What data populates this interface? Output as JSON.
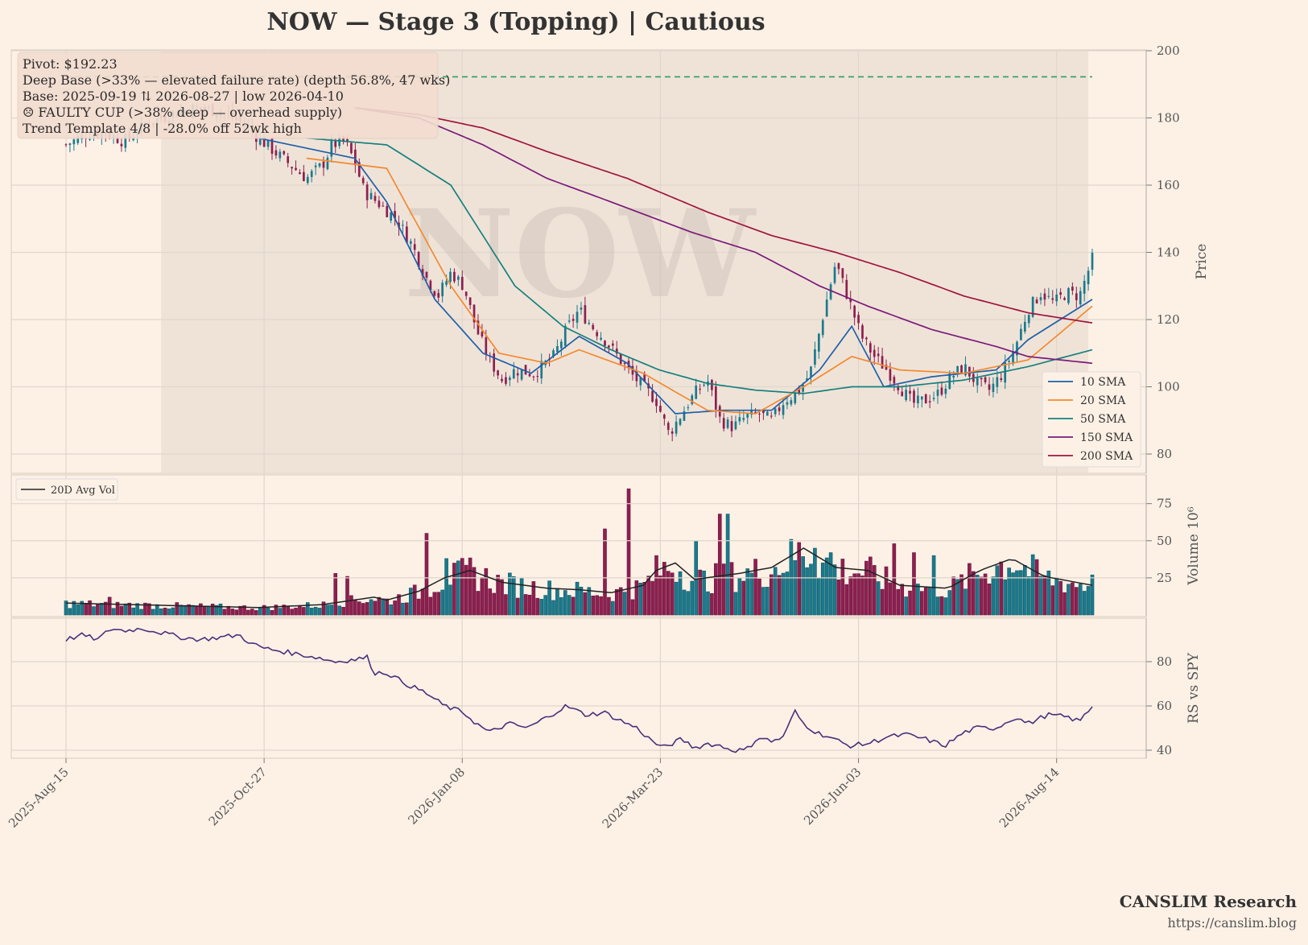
{
  "title": "NOW  —  Stage 3 (Topping)  |  Cautious",
  "watermark": "NOW",
  "info_box": {
    "lines": [
      "Pivot: $192.23",
      "Deep Base (>33% — elevated failure rate)  (depth 56.8%, 47 wks)",
      "Base: 2025-09-19 ⇅ 2026-08-27  |  low 2026-04-10",
      "☹ FAULTY CUP (>38% deep — overhead supply)",
      "Trend Template 4/8  |  -28.0% off 52wk high"
    ]
  },
  "footer": {
    "brand": "CANSLIM Research",
    "url": "https://canslim.blog"
  },
  "colors": {
    "up": "#1b7a8c",
    "down": "#8e1f4f",
    "pivot": "#2e9e5e",
    "sma10": "#1f5fa8",
    "sma20": "#f28a30",
    "sma50": "#17807e",
    "sma150": "#7a1a7a",
    "sma200": "#a0143c",
    "avgvol": "#222222",
    "rs": "#4a2f7a",
    "grid": "#e0d6cc",
    "base_shade": "#e9ddd3"
  },
  "chart_data": {
    "type": "candlestick-with-volume-and-rs",
    "x_ticks": [
      "2025-Aug-15",
      "2025-Oct-27",
      "2026-Jan-08",
      "2026-Mar-23",
      "2026-Jun-03",
      "2026-Aug-14"
    ],
    "x_tick_index": [
      0,
      50,
      100,
      150,
      200,
      250
    ],
    "total_bars": 260,
    "base_range_index": [
      24,
      258
    ],
    "price_panel": {
      "ylabel": "Price",
      "ylim": [
        80,
        200
      ],
      "yticks": [
        80,
        100,
        120,
        140,
        160,
        180,
        200
      ],
      "pivot": 192.23,
      "close_path": [
        [
          0,
          172
        ],
        [
          6,
          175
        ],
        [
          12,
          176
        ],
        [
          18,
          173
        ],
        [
          25,
          178
        ],
        [
          32,
          181
        ],
        [
          40,
          183
        ],
        [
          48,
          182
        ],
        [
          56,
          178
        ],
        [
          60,
          174
        ],
        [
          65,
          170
        ],
        [
          70,
          166
        ],
        [
          75,
          162
        ],
        [
          80,
          166
        ],
        [
          83,
          172
        ],
        [
          87,
          173
        ],
        [
          90,
          167
        ],
        [
          93,
          158
        ],
        [
          97,
          155
        ],
        [
          103,
          150
        ],
        [
          108,
          142
        ],
        [
          112,
          133
        ],
        [
          116,
          127
        ],
        [
          120,
          134
        ],
        [
          124,
          130
        ],
        [
          128,
          117
        ],
        [
          132,
          108
        ],
        [
          136,
          102
        ],
        [
          140,
          105
        ],
        [
          146,
          104
        ],
        [
          152,
          109
        ],
        [
          156,
          117
        ],
        [
          160,
          123
        ],
        [
          164,
          118
        ],
        [
          168,
          114
        ],
        [
          172,
          109
        ],
        [
          176,
          104
        ],
        [
          180,
          100
        ],
        [
          184,
          96
        ],
        [
          188,
          86
        ],
        [
          192,
          92
        ],
        [
          196,
          98
        ],
        [
          200,
          102
        ],
        [
          204,
          90
        ],
        [
          208,
          88
        ],
        [
          212,
          91
        ],
        [
          216,
          92
        ],
        [
          220,
          90
        ],
        [
          224,
          96
        ],
        [
          228,
          98
        ],
        [
          232,
          104
        ],
        [
          236,
          121
        ],
        [
          240,
          137
        ],
        [
          244,
          126
        ],
        [
          248,
          115
        ],
        [
          252,
          109
        ],
        [
          256,
          105
        ],
        [
          260,
          100
        ],
        [
          264,
          95
        ],
        [
          268,
          96
        ],
        [
          272,
          98
        ],
        [
          276,
          103
        ],
        [
          280,
          106
        ],
        [
          284,
          101
        ],
        [
          288,
          99
        ],
        [
          292,
          104
        ],
        [
          296,
          112
        ],
        [
          300,
          123
        ],
        [
          304,
          128
        ],
        [
          308,
          125
        ],
        [
          312,
          128
        ],
        [
          316,
          127
        ],
        [
          320,
          138
        ]
      ]
    },
    "sma_series": [
      {
        "name": "10 SMA",
        "lag": 10
      },
      {
        "name": "20 SMA",
        "lag": 20
      },
      {
        "name": "50 SMA",
        "lag": 50
      },
      {
        "name": "150 SMA",
        "lag": 150
      },
      {
        "name": "200 SMA",
        "lag": 200
      }
    ],
    "sma_anchors": {
      "10 SMA": [
        [
          60,
          174
        ],
        [
          90,
          168
        ],
        [
          100,
          155
        ],
        [
          115,
          126
        ],
        [
          130,
          110
        ],
        [
          145,
          104
        ],
        [
          160,
          115
        ],
        [
          175,
          107
        ],
        [
          190,
          92
        ],
        [
          205,
          93
        ],
        [
          220,
          93
        ],
        [
          235,
          105
        ],
        [
          245,
          118
        ],
        [
          255,
          100
        ],
        [
          270,
          103
        ],
        [
          290,
          105
        ],
        [
          300,
          114
        ],
        [
          320,
          126
        ]
      ],
      "20 SMA": [
        [
          75,
          168
        ],
        [
          100,
          165
        ],
        [
          120,
          130
        ],
        [
          135,
          110
        ],
        [
          150,
          107
        ],
        [
          160,
          111
        ],
        [
          180,
          104
        ],
        [
          200,
          93
        ],
        [
          215,
          92
        ],
        [
          230,
          100
        ],
        [
          245,
          109
        ],
        [
          260,
          105
        ],
        [
          280,
          104
        ],
        [
          300,
          108
        ],
        [
          320,
          124
        ]
      ],
      "50 SMA": [
        [
          75,
          174
        ],
        [
          100,
          172
        ],
        [
          120,
          160
        ],
        [
          140,
          130
        ],
        [
          155,
          118
        ],
        [
          170,
          111
        ],
        [
          185,
          105
        ],
        [
          200,
          101
        ],
        [
          215,
          99
        ],
        [
          230,
          98
        ],
        [
          245,
          100
        ],
        [
          260,
          100
        ],
        [
          280,
          102
        ],
        [
          300,
          106
        ],
        [
          320,
          111
        ]
      ],
      "150 SMA": [
        [
          90,
          183
        ],
        [
          110,
          180
        ],
        [
          130,
          172
        ],
        [
          150,
          162
        ],
        [
          170,
          155
        ],
        [
          195,
          146
        ],
        [
          215,
          140
        ],
        [
          235,
          130
        ],
        [
          250,
          124
        ],
        [
          270,
          117
        ],
        [
          290,
          112
        ],
        [
          300,
          109
        ],
        [
          320,
          107
        ]
      ],
      "200 SMA": [
        [
          90,
          183
        ],
        [
          110,
          181
        ],
        [
          130,
          177
        ],
        [
          150,
          170
        ],
        [
          175,
          162
        ],
        [
          200,
          152
        ],
        [
          220,
          145
        ],
        [
          240,
          140
        ],
        [
          260,
          134
        ],
        [
          280,
          127
        ],
        [
          300,
          122
        ],
        [
          320,
          119
        ]
      ]
    },
    "volume_panel": {
      "ylabel": "Volume  10⁶",
      "ylim": [
        0,
        90
      ],
      "yticks": [
        25,
        50,
        75
      ],
      "legend": "20D Avg Vol",
      "level_path": [
        [
          0,
          8
        ],
        [
          20,
          7
        ],
        [
          40,
          6
        ],
        [
          60,
          5
        ],
        [
          80,
          7
        ],
        [
          96,
          12
        ],
        [
          100,
          10
        ],
        [
          110,
          16
        ],
        [
          118,
          25
        ],
        [
          126,
          30
        ],
        [
          136,
          22
        ],
        [
          150,
          18
        ],
        [
          160,
          17
        ],
        [
          170,
          15
        ],
        [
          180,
          20
        ],
        [
          184,
          30
        ],
        [
          190,
          35
        ],
        [
          196,
          24
        ],
        [
          210,
          28
        ],
        [
          220,
          32
        ],
        [
          230,
          45
        ],
        [
          240,
          32
        ],
        [
          250,
          30
        ],
        [
          260,
          20
        ],
        [
          275,
          18
        ],
        [
          285,
          30
        ],
        [
          295,
          38
        ],
        [
          305,
          26
        ],
        [
          320,
          20
        ]
      ],
      "spikes": [
        [
          14,
          12
        ],
        [
          84,
          28
        ],
        [
          88,
          26
        ],
        [
          112,
          55
        ],
        [
          118,
          38
        ],
        [
          168,
          58
        ],
        [
          176,
          85
        ],
        [
          184,
          40
        ],
        [
          196,
          50
        ],
        [
          204,
          68
        ],
        [
          206,
          68
        ],
        [
          234,
          45
        ],
        [
          238,
          42
        ],
        [
          258,
          48
        ],
        [
          264,
          42
        ],
        [
          270,
          40
        ],
        [
          320,
          27
        ]
      ]
    },
    "rs_panel": {
      "ylabel": "RS vs SPY",
      "ylim": [
        37,
        95
      ],
      "yticks": [
        40,
        60,
        80
      ],
      "path": [
        [
          0,
          90
        ],
        [
          5,
          92
        ],
        [
          10,
          90
        ],
        [
          14,
          95
        ],
        [
          18,
          94
        ],
        [
          24,
          95
        ],
        [
          30,
          93
        ],
        [
          36,
          91
        ],
        [
          42,
          90
        ],
        [
          48,
          91
        ],
        [
          54,
          92
        ],
        [
          58,
          88
        ],
        [
          62,
          86
        ],
        [
          70,
          84
        ],
        [
          78,
          82
        ],
        [
          84,
          80
        ],
        [
          90,
          81
        ],
        [
          94,
          82
        ],
        [
          96,
          75
        ],
        [
          100,
          75
        ],
        [
          106,
          70
        ],
        [
          112,
          66
        ],
        [
          118,
          60
        ],
        [
          124,
          57
        ],
        [
          128,
          52
        ],
        [
          132,
          48
        ],
        [
          138,
          52
        ],
        [
          144,
          50
        ],
        [
          150,
          55
        ],
        [
          156,
          60
        ],
        [
          162,
          56
        ],
        [
          168,
          57
        ],
        [
          172,
          54
        ],
        [
          178,
          50
        ],
        [
          182,
          45
        ],
        [
          186,
          41
        ],
        [
          192,
          45
        ],
        [
          196,
          41
        ],
        [
          200,
          43
        ],
        [
          204,
          42
        ],
        [
          208,
          40
        ],
        [
          212,
          40
        ],
        [
          216,
          46
        ],
        [
          220,
          44
        ],
        [
          224,
          46
        ],
        [
          227,
          58
        ],
        [
          230,
          52
        ],
        [
          234,
          48
        ],
        [
          238,
          46
        ],
        [
          244,
          42
        ],
        [
          250,
          43
        ],
        [
          256,
          46
        ],
        [
          262,
          47
        ],
        [
          268,
          45
        ],
        [
          274,
          42
        ],
        [
          280,
          48
        ],
        [
          284,
          50
        ],
        [
          290,
          50
        ],
        [
          296,
          55
        ],
        [
          300,
          52
        ],
        [
          306,
          56
        ],
        [
          312,
          55
        ],
        [
          316,
          53
        ],
        [
          320,
          60
        ]
      ]
    }
  }
}
